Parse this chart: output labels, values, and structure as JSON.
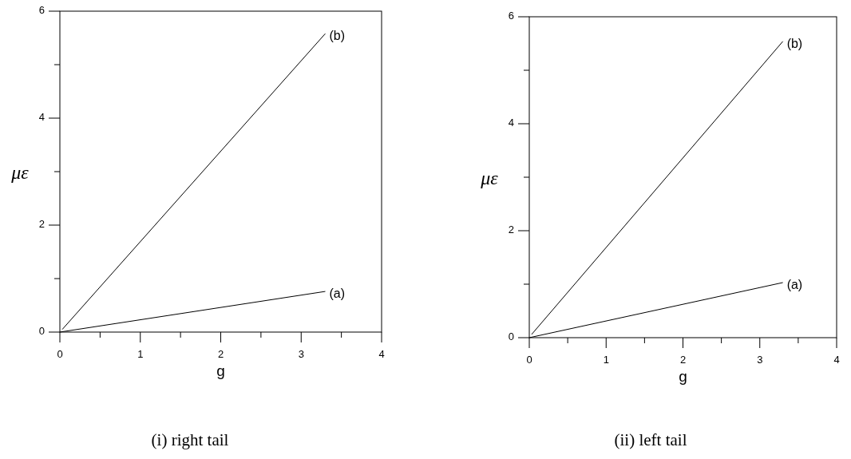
{
  "chart_data": [
    {
      "type": "line",
      "xlabel": "g",
      "ylabel": "με",
      "annotations": [
        "(i) right tail"
      ],
      "xlim": [
        0,
        4
      ],
      "ylim": [
        0,
        6
      ],
      "xticks": [
        0,
        {
          "value": 0.5,
          "label": null
        },
        1,
        {
          "value": 1.5,
          "label": null
        },
        2,
        {
          "value": 2.5,
          "label": null
        },
        3,
        {
          "value": 3.5,
          "label": null
        },
        4
      ],
      "yticks": [
        0,
        {
          "value": 1,
          "label": null
        },
        2,
        {
          "value": 3,
          "label": null
        },
        4,
        {
          "value": 5,
          "label": null
        },
        6
      ],
      "series": [
        {
          "name": "(a)",
          "color": "#000000",
          "x": [
            0,
            3.3
          ],
          "values": [
            0,
            0.76
          ]
        },
        {
          "name": "(b)",
          "color": "#000000",
          "x": [
            0.03,
            3.3
          ],
          "values": [
            0.05,
            5.58
          ]
        }
      ]
    },
    {
      "type": "line",
      "xlabel": "g",
      "ylabel": "με",
      "annotations": [
        "(ii) left tail"
      ],
      "xlim": [
        0,
        4
      ],
      "ylim": [
        0,
        6
      ],
      "xticks": [
        0,
        {
          "value": 0.5,
          "label": null
        },
        1,
        {
          "value": 1.5,
          "label": null
        },
        2,
        {
          "value": 2.5,
          "label": null
        },
        3,
        {
          "value": 3.5,
          "label": null
        },
        4
      ],
      "yticks": [
        0,
        {
          "value": 1,
          "label": null
        },
        2,
        {
          "value": 3,
          "label": null
        },
        4,
        {
          "value": 5,
          "label": null
        },
        6
      ],
      "series": [
        {
          "name": "(a)",
          "color": "#000000",
          "x": [
            0,
            3.3
          ],
          "values": [
            0,
            1.03
          ]
        },
        {
          "name": "(b)",
          "color": "#000000",
          "x": [
            0.03,
            3.3
          ],
          "values": [
            0.06,
            5.54
          ]
        }
      ]
    }
  ]
}
